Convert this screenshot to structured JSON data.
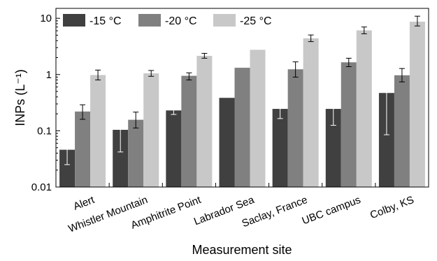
{
  "chart_data": {
    "type": "bar",
    "title": "",
    "xlabel": "Measurement site",
    "ylabel": "INPs (L⁻¹)",
    "yscale": "log",
    "ylim": [
      0.01,
      15
    ],
    "yticks": [
      {
        "value": 0.01,
        "label": "0.01"
      },
      {
        "value": 0.1,
        "label": "0.1"
      },
      {
        "value": 1,
        "label": "1"
      },
      {
        "value": 10,
        "label": "10"
      }
    ],
    "legend_position": "top-left",
    "grid": false,
    "categories": [
      "Alert",
      "Whistler Mountain",
      "Amphitrite Point",
      "Labrador Sea",
      "Saclay, France",
      "UBC campus",
      "Colby, KS"
    ],
    "series": [
      {
        "name": "-15 °C",
        "color": "#404040",
        "values": [
          0.046,
          0.104,
          0.23,
          0.385,
          0.245,
          0.245,
          0.47
        ],
        "err_low": [
          0.025,
          0.042,
          0.195,
          null,
          0.165,
          0.125,
          0.085
        ],
        "err_high": [
          0.067,
          0.165,
          0.27,
          null,
          0.33,
          0.37,
          0.86
        ]
      },
      {
        "name": "-20 °C",
        "color": "#808080",
        "values": [
          0.22,
          0.157,
          0.95,
          1.32,
          1.24,
          1.65,
          0.97
        ],
        "err_low": [
          0.16,
          0.112,
          0.8,
          null,
          0.9,
          1.38,
          0.74
        ],
        "err_high": [
          0.29,
          0.215,
          1.07,
          null,
          1.68,
          1.95,
          1.28
        ]
      },
      {
        "name": "-25 °C",
        "color": "#c8c8c8",
        "values": [
          0.98,
          1.05,
          2.15,
          2.75,
          4.4,
          6.1,
          8.7
        ],
        "err_low": [
          0.8,
          0.93,
          1.95,
          null,
          3.85,
          5.3,
          7.3
        ],
        "err_high": [
          1.2,
          1.18,
          2.38,
          null,
          5.05,
          7.0,
          10.9
        ]
      }
    ]
  }
}
